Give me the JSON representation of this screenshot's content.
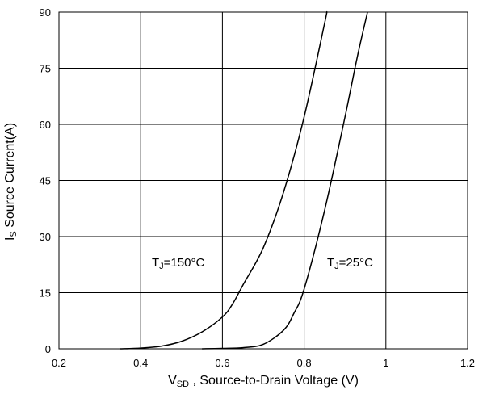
{
  "chart_data": {
    "type": "line",
    "title": "",
    "xlabel": {
      "main": "V",
      "sub": "SD",
      "rest": " , Source-to-Drain Voltage (V)"
    },
    "ylabel": {
      "main": "I",
      "sub": "S",
      "rest": " Source Current(A)"
    },
    "xlim": [
      0.2,
      1.2
    ],
    "ylim": [
      0,
      90
    ],
    "x_ticks": [
      "0.2",
      "0.4",
      "0.6",
      "0.8",
      "1",
      "1.2"
    ],
    "y_ticks": [
      "0",
      "15",
      "30",
      "45",
      "60",
      "75",
      "90"
    ],
    "grid": true,
    "series": [
      {
        "x": [
          0.35,
          0.4,
          0.45,
          0.5,
          0.55,
          0.6,
          0.625,
          0.65,
          0.7,
          0.75,
          0.8,
          0.85,
          0.855
        ],
        "y": [
          0,
          0.2,
          0.7,
          2.0,
          4.5,
          8.5,
          12,
          17,
          27,
          42,
          62,
          87,
          90
        ]
      },
      {
        "x": [
          0.55,
          0.6,
          0.65,
          0.7,
          0.75,
          0.775,
          0.8,
          0.85,
          0.9,
          0.93,
          0.955
        ],
        "y": [
          0,
          0.1,
          0.3,
          1.2,
          5,
          9.5,
          16,
          37,
          62,
          78,
          90
        ]
      }
    ],
    "annotations": [
      {
        "main": "T",
        "sub": "J",
        "rest": "=150°C"
      },
      {
        "main": "T",
        "sub": "J",
        "rest": "=25°C"
      }
    ]
  }
}
